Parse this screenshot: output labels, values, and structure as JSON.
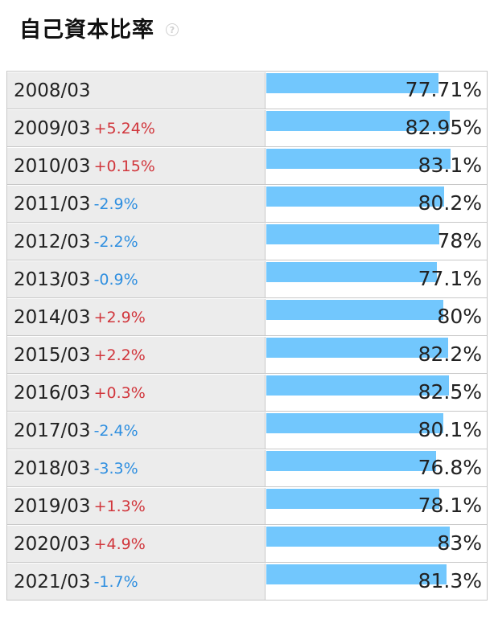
{
  "header": {
    "title": "自己資本比率",
    "help_icon": "question-circle-icon"
  },
  "colors": {
    "bar": "#72c7fd",
    "increase": "#d1363c",
    "decrease": "#2f8fe0",
    "label_bg": "#ececec"
  },
  "chart_data": {
    "type": "bar",
    "title": "自己資本比率",
    "orientation": "horizontal",
    "categories": [
      "2008/03",
      "2009/03",
      "2010/03",
      "2011/03",
      "2012/03",
      "2013/03",
      "2014/03",
      "2015/03",
      "2016/03",
      "2017/03",
      "2018/03",
      "2019/03",
      "2020/03",
      "2021/03"
    ],
    "values": [
      77.71,
      82.95,
      83.1,
      80.2,
      78,
      77.1,
      80,
      82.2,
      82.5,
      80.1,
      76.8,
      78.1,
      83,
      81.3
    ],
    "value_labels": [
      "77.71%",
      "82.95%",
      "83.1%",
      "80.2%",
      "78%",
      "77.1%",
      "80%",
      "82.2%",
      "82.5%",
      "80.1%",
      "76.8%",
      "78.1%",
      "83%",
      "81.3%"
    ],
    "changes": [
      "",
      "+5.24%",
      "+0.15%",
      "-2.9%",
      "-2.2%",
      "-0.9%",
      "+2.9%",
      "+2.2%",
      "+0.3%",
      "-2.4%",
      "-3.3%",
      "+1.3%",
      "+4.9%",
      "-1.7%"
    ],
    "xlim": [
      0,
      100
    ],
    "grid": false
  }
}
